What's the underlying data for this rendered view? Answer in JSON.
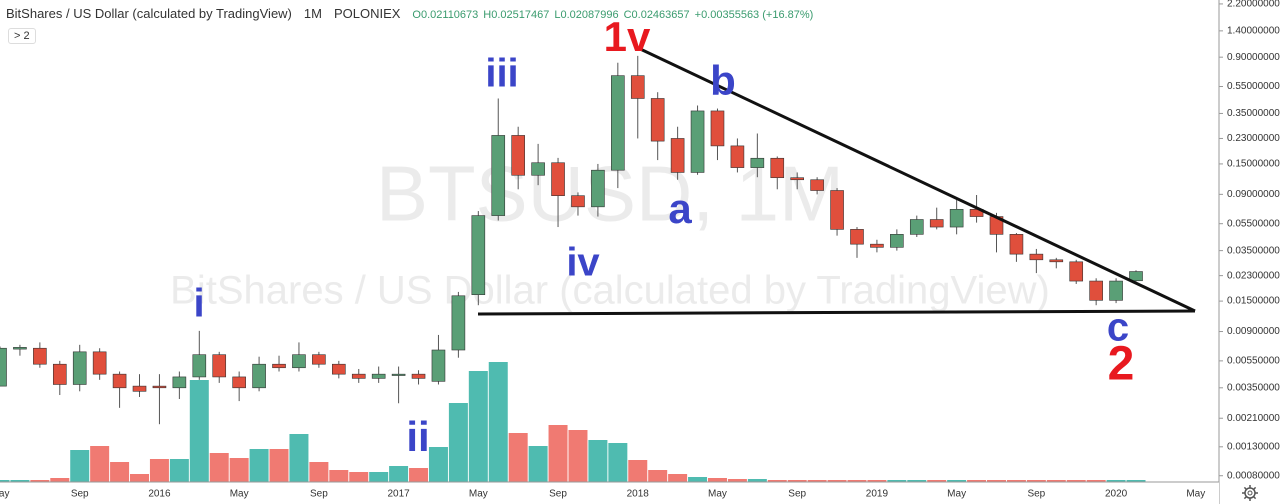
{
  "chart_data": {
    "type": "candlestick",
    "title": "BitShares / US Dollar (calculated by TradingView)",
    "interval": "1M",
    "exchange": "POLONIEX",
    "ohlc_legend": [
      "O0.02110673",
      "H0.02517467",
      "L0.02087996",
      "C0.02463657",
      "+0.00355563 (+16.87%)"
    ],
    "indicator_badge": "> 2",
    "watermark": "BTSUSD, 1M",
    "log_scale": true,
    "grid": false,
    "up_color": "#5a9f76",
    "down_color": "#e04f3c",
    "volume_up_color": "#4fbbb0",
    "volume_down_color": "#f07a72",
    "ylim": [
      0.00072,
      2.35
    ],
    "yticks": [
      {
        "value": 2.2,
        "label": "2.20000000"
      },
      {
        "value": 1.4,
        "label": "1.40000000"
      },
      {
        "value": 0.9,
        "label": "0.90000000"
      },
      {
        "value": 0.55,
        "label": "0.55000000"
      },
      {
        "value": 0.35,
        "label": "0.35000000"
      },
      {
        "value": 0.23,
        "label": "0.23000000"
      },
      {
        "value": 0.15,
        "label": "0.15000000"
      },
      {
        "value": 0.09,
        "label": "0.09000000"
      },
      {
        "value": 0.055,
        "label": "0.05500000"
      },
      {
        "value": 0.035,
        "label": "0.03500000"
      },
      {
        "value": 0.023,
        "label": "0.02300000"
      },
      {
        "value": 0.015,
        "label": "0.01500000"
      },
      {
        "value": 0.009,
        "label": "0.00900000"
      },
      {
        "value": 0.0055,
        "label": "0.00550000"
      },
      {
        "value": 0.0035,
        "label": "0.00350000"
      },
      {
        "value": 0.0021,
        "label": "0.00210000"
      },
      {
        "value": 0.0013,
        "label": "0.00130000"
      },
      {
        "value": 0.0008,
        "label": "0.00080000"
      }
    ],
    "categories": [
      "May",
      null,
      null,
      null,
      "Sep",
      null,
      null,
      null,
      "2016",
      null,
      null,
      null,
      "May",
      null,
      null,
      null,
      "Sep",
      null,
      null,
      null,
      "2017",
      null,
      null,
      null,
      "May",
      null,
      null,
      null,
      "Sep",
      null,
      null,
      null,
      "2018",
      null,
      null,
      null,
      "May",
      null,
      null,
      null,
      "Sep",
      null,
      null,
      null,
      "2019",
      null,
      null,
      null,
      "May",
      null,
      null,
      null,
      "Sep",
      null,
      null,
      null,
      "2020",
      null,
      null,
      null,
      "May"
    ],
    "open": [
      0.0036,
      0.0067,
      0.0068,
      0.0052,
      0.0037,
      0.0064,
      0.0044,
      0.0036,
      0.0036,
      0.0035,
      0.0042,
      0.0061,
      0.0042,
      0.0035,
      0.0052,
      0.0049,
      0.0061,
      0.0052,
      0.0044,
      0.0041,
      0.0043,
      0.0044,
      0.0039,
      0.0066,
      0.0167,
      0.063,
      0.242,
      0.124,
      0.153,
      0.088,
      0.073,
      0.135,
      0.66,
      0.45,
      0.23,
      0.13,
      0.365,
      0.203,
      0.141,
      0.165,
      0.119,
      0.115,
      0.096,
      0.05,
      0.039,
      0.037,
      0.046,
      0.059,
      0.052,
      0.07,
      0.062,
      0.046,
      0.033,
      0.03,
      0.029,
      0.021,
      0.0152,
      0.02110673,
      null,
      null,
      null
    ],
    "high": [
      0.007,
      0.0072,
      0.0075,
      0.0055,
      0.0072,
      0.0068,
      0.0046,
      0.0044,
      0.0044,
      0.0046,
      0.0091,
      0.0064,
      0.0046,
      0.0059,
      0.006,
      0.0075,
      0.0064,
      0.0055,
      0.0048,
      0.005,
      0.005,
      0.0047,
      0.0085,
      0.0175,
      0.068,
      0.45,
      0.28,
      0.21,
      0.166,
      0.093,
      0.15,
      0.82,
      0.92,
      0.5,
      0.28,
      0.4,
      0.38,
      0.23,
      0.25,
      0.17,
      0.13,
      0.12,
      0.1,
      0.052,
      0.042,
      0.05,
      0.063,
      0.072,
      0.082,
      0.089,
      0.066,
      0.047,
      0.036,
      0.031,
      0.03,
      0.022,
      0.022,
      0.02517467,
      null,
      null,
      null
    ],
    "low": [
      0.0036,
      0.006,
      0.0049,
      0.0031,
      0.0033,
      0.004,
      0.0025,
      0.003,
      0.0019,
      0.0029,
      0.004,
      0.0038,
      0.0028,
      0.0033,
      0.0046,
      0.0046,
      0.0049,
      0.0041,
      0.0038,
      0.0038,
      0.0027,
      0.0037,
      0.0037,
      0.0058,
      0.014,
      0.058,
      0.098,
      0.105,
      0.052,
      0.063,
      0.062,
      0.1,
      0.23,
      0.16,
      0.115,
      0.125,
      0.16,
      0.13,
      0.12,
      0.098,
      0.098,
      0.09,
      0.045,
      0.031,
      0.034,
      0.035,
      0.044,
      0.05,
      0.046,
      0.056,
      0.034,
      0.029,
      0.024,
      0.026,
      0.02,
      0.014,
      0.0145,
      0.02087996,
      null,
      null,
      null
    ],
    "close": [
      0.0068,
      0.0069,
      0.0052,
      0.0037,
      0.0064,
      0.0044,
      0.0035,
      0.0033,
      0.0035,
      0.0042,
      0.0061,
      0.0042,
      0.0035,
      0.0052,
      0.0049,
      0.0061,
      0.0052,
      0.0044,
      0.0041,
      0.0044,
      0.0044,
      0.0041,
      0.0066,
      0.0164,
      0.063,
      0.242,
      0.124,
      0.153,
      0.088,
      0.073,
      0.135,
      0.66,
      0.45,
      0.22,
      0.13,
      0.365,
      0.203,
      0.141,
      0.165,
      0.119,
      0.115,
      0.096,
      0.05,
      0.039,
      0.037,
      0.046,
      0.059,
      0.052,
      0.07,
      0.062,
      0.046,
      0.033,
      0.03,
      0.029,
      0.021,
      0.0152,
      0.021,
      0.02463657,
      null,
      null,
      null
    ],
    "volume": [
      2,
      2,
      2,
      4,
      32,
      36,
      20,
      8,
      23,
      23,
      102,
      29,
      24,
      33,
      33,
      48,
      20,
      12,
      10,
      10,
      16,
      14,
      35,
      79,
      111,
      120,
      49,
      36,
      57,
      52,
      42,
      39,
      22,
      12,
      8,
      5,
      4,
      3,
      3,
      2,
      2,
      2,
      2,
      2,
      2,
      2,
      2,
      2,
      2,
      2,
      2,
      2,
      2,
      2,
      2,
      2,
      2,
      2,
      null,
      null,
      null
    ],
    "annotations": [
      {
        "text": "1v",
        "color": "#e8191f"
      },
      {
        "text": "iii",
        "color": "#3b45c8"
      },
      {
        "text": "b",
        "color": "#3b45c8"
      },
      {
        "text": "a",
        "color": "#3b45c8"
      },
      {
        "text": "iv",
        "color": "#3b45c8"
      },
      {
        "text": "i",
        "color": "#3b45c8"
      },
      {
        "text": "ii",
        "color": "#3b45c8"
      },
      {
        "text": "c",
        "color": "#3b45c8"
      },
      {
        "text": "2",
        "color": "#e8191f"
      }
    ]
  }
}
